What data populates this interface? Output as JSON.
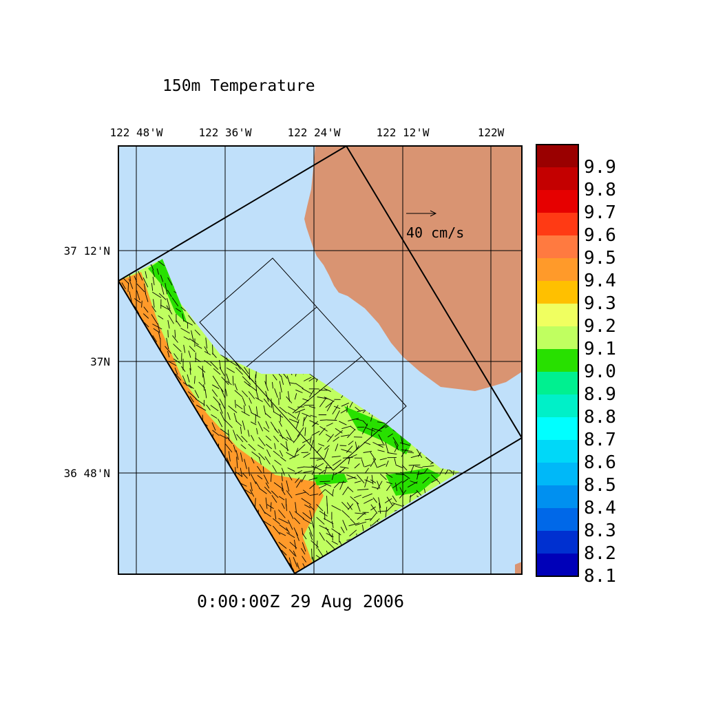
{
  "title": "150m Temperature",
  "timestamp": "0:00:00Z  29 Aug 2006",
  "vector_scale_label": "40 cm/s",
  "x_axis": {
    "ticks": [
      "122 48'W",
      "122 36'W",
      "122 24'W",
      "122 12'W",
      "122W"
    ]
  },
  "y_axis": {
    "ticks": [
      "37 12'N",
      "37N",
      "36 48'N"
    ]
  },
  "colorbar": {
    "labels": [
      "9.9",
      "9.8",
      "9.7",
      "9.6",
      "9.5",
      "9.4",
      "9.3",
      "9.2",
      "9.1",
      "9.0",
      "8.9",
      "8.8",
      "8.7",
      "8.6",
      "8.5",
      "8.4",
      "8.3",
      "8.2",
      "8.1"
    ],
    "colors": [
      "#9a0000",
      "#c40000",
      "#e60000",
      "#ff3a14",
      "#ff7a40",
      "#ff9a2a",
      "#ffc000",
      "#f0ff60",
      "#c0ff60",
      "#28e000",
      "#00f090",
      "#00f0c8",
      "#00ffff",
      "#00d8f8",
      "#00b8f8",
      "#0090f0",
      "#0068e8",
      "#0030d0",
      "#0000b8"
    ]
  },
  "colors": {
    "ocean": "#c0e0fa",
    "land": "#d99472",
    "warm_water": "#ff9a2a",
    "mid_water": "#c0ff60",
    "cool_water": "#28e000"
  }
}
